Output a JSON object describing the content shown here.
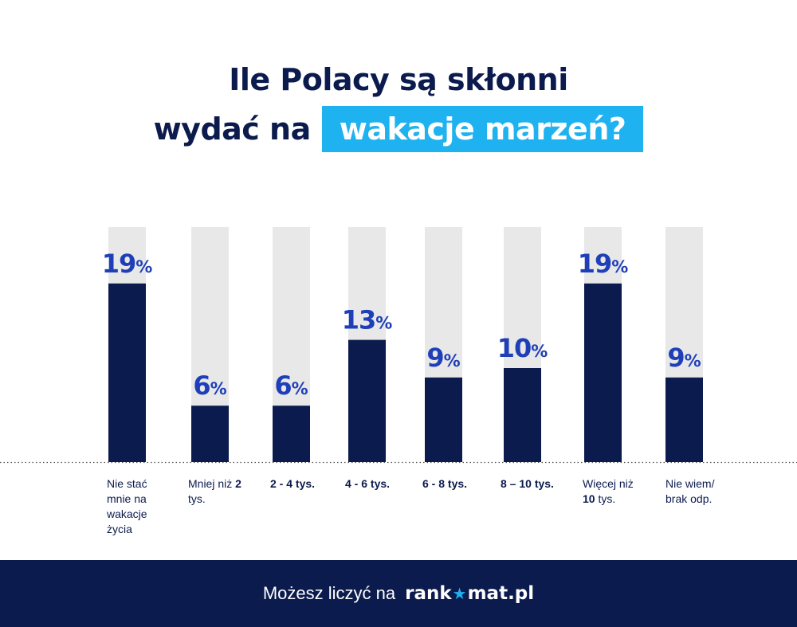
{
  "title": {
    "line1": "Ile Polacy są skłonni",
    "line2_prefix": "wydać na",
    "line2_highlight": "wakacje marzeń?"
  },
  "chart_data": {
    "type": "bar",
    "categories": [
      "Nie stać mnie na wakacje życia",
      "Mniej niż 2 tys.",
      "2 - 4 tys.",
      "4 - 6 tys.",
      "6 - 8 tys.",
      "8 – 10 tys.",
      "Więcej niż 10 tys.",
      "Nie wiem/ brak odp."
    ],
    "values": [
      19,
      6,
      6,
      13,
      9,
      10,
      19,
      9
    ],
    "value_labels": [
      "19%",
      "6%",
      "6%",
      "13%",
      "9%",
      "10%",
      "19%",
      "9%"
    ],
    "unit": "%",
    "ylim": [
      0,
      25
    ],
    "grid": false,
    "colors": {
      "bar": "#0c1b4d",
      "track": "#e8e8e8",
      "label": "#1f3fb8"
    }
  },
  "footer": {
    "text": "Możesz liczyć na",
    "logo_part1": "rank",
    "logo_part2": "mat.pl",
    "logo_star": "★"
  }
}
